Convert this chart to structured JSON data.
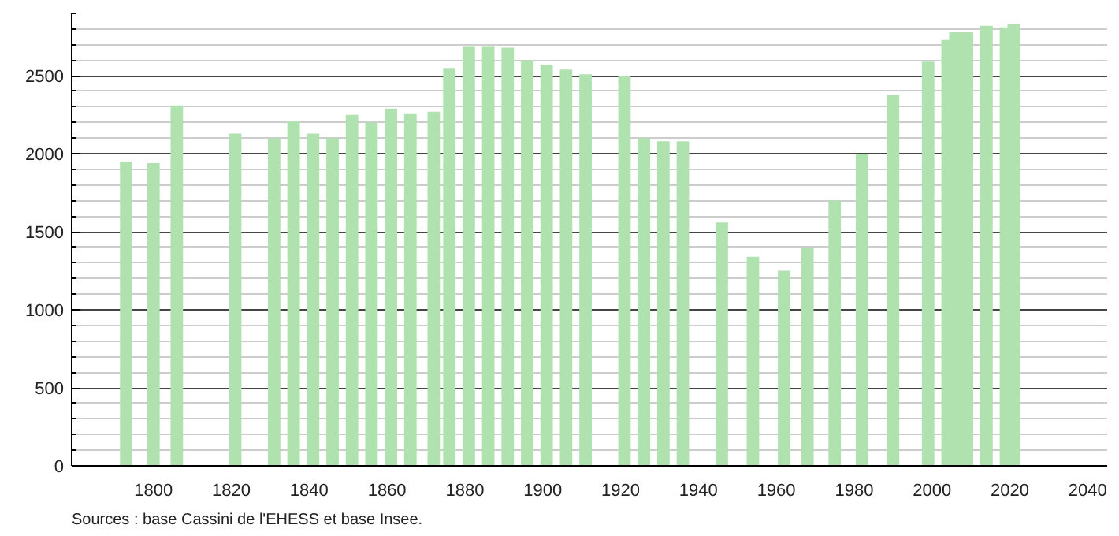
{
  "chart_data": {
    "type": "bar",
    "x": [
      1793,
      1800,
      1806,
      1821,
      1831,
      1836,
      1841,
      1846,
      1851,
      1856,
      1861,
      1866,
      1872,
      1876,
      1881,
      1886,
      1891,
      1896,
      1901,
      1906,
      1911,
      1921,
      1926,
      1931,
      1936,
      1946,
      1954,
      1962,
      1968,
      1975,
      1982,
      1990,
      1999,
      2004,
      2006,
      2007,
      2008,
      2009,
      2014,
      2019,
      2021
    ],
    "values": [
      1950,
      1940,
      2310,
      2130,
      2100,
      2210,
      2130,
      2100,
      2250,
      2200,
      2290,
      2260,
      2270,
      2550,
      2690,
      2690,
      2680,
      2600,
      2570,
      2540,
      2510,
      2500,
      2100,
      2080,
      2080,
      1560,
      1340,
      1250,
      1400,
      1700,
      2000,
      2380,
      2590,
      2730,
      2780,
      null,
      null,
      2780,
      2820,
      2810,
      2830
    ],
    "color": "#b0e2b0",
    "xlim": [
      1779,
      2045
    ],
    "xticks": [
      1800,
      1820,
      1840,
      1860,
      1880,
      1900,
      1920,
      1940,
      1960,
      1980,
      2000,
      2020,
      2040
    ],
    "ylim": [
      0,
      2900
    ],
    "yticks": [
      0,
      500,
      1000,
      1500,
      2000,
      2500
    ],
    "grid": "y",
    "annotations": [
      "Sources : base Cassini de l'EHESS et base Insee."
    ]
  }
}
